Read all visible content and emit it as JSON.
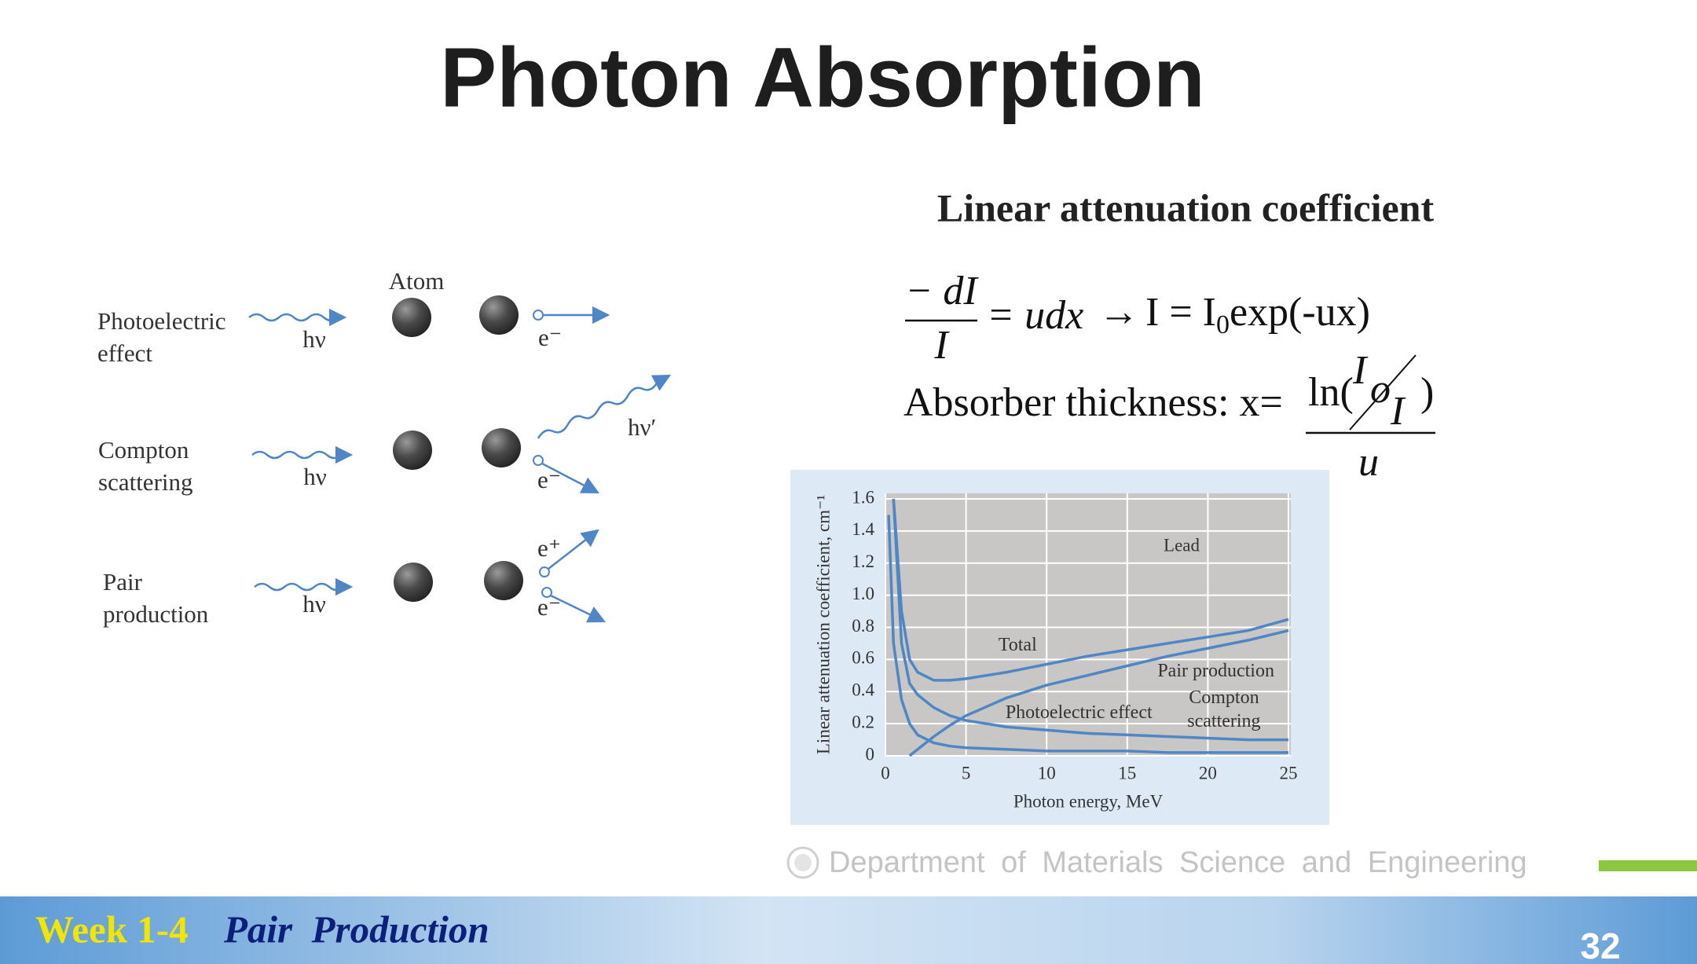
{
  "title": "Photon Absorption",
  "subtitle": "Linear attenuation coefficient",
  "equations": {
    "differential": {
      "numerator": "− dI",
      "denominator": "I",
      "rhs": "= udx",
      "arrow": "→",
      "result": "I = I",
      "result_sub": "0",
      "result_rest": "exp(-ux)"
    },
    "thickness": {
      "lead": "Absorber thickness: x=",
      "ln": "ln(",
      "i0": "I",
      "i0_sub": "o",
      "i": "I",
      "close": ")",
      "denominator": "u"
    }
  },
  "diagram": {
    "atom_label": "Atom",
    "rows": [
      {
        "label": [
          "Photoelectric",
          "effect"
        ],
        "photon": "hν",
        "products": [
          "e⁻"
        ]
      },
      {
        "label": [
          "Compton",
          "scattering"
        ],
        "photon": "hν",
        "products": [
          "hν′",
          "e⁻"
        ]
      },
      {
        "label": [
          "Pair",
          "production"
        ],
        "photon": "hν",
        "products": [
          "e⁺",
          "e⁻"
        ]
      }
    ]
  },
  "chart_data": {
    "type": "line",
    "xlabel": "Photon energy, MeV",
    "ylabel": "Linear attenuation coefficient, cm⁻¹",
    "annotation": "Lead",
    "x": [
      0.2,
      0.5,
      1,
      1.5,
      2,
      3,
      4,
      5,
      7.5,
      10,
      12.5,
      15,
      17.5,
      20,
      22.5,
      25
    ],
    "series": [
      {
        "name": "Total",
        "color": "#4f86c6",
        "values": [
          null,
          1.6,
          0.9,
          0.6,
          0.52,
          0.47,
          0.47,
          0.48,
          0.52,
          0.57,
          0.62,
          0.66,
          0.7,
          0.74,
          0.78,
          0.85
        ]
      },
      {
        "name": "Pair production",
        "color": "#4f86c6",
        "values": [
          null,
          null,
          null,
          0,
          0.04,
          0.12,
          0.19,
          0.25,
          0.36,
          0.44,
          0.5,
          0.56,
          0.62,
          0.67,
          0.72,
          0.78
        ]
      },
      {
        "name": "Photoelectric effect",
        "color": "#4f86c6",
        "values": [
          1.5,
          0.7,
          0.35,
          0.2,
          0.13,
          0.08,
          0.06,
          0.05,
          0.04,
          0.03,
          0.03,
          0.03,
          0.02,
          0.02,
          0.02,
          0.02
        ]
      },
      {
        "name": "Compton scattering",
        "color": "#4f86c6",
        "values": [
          null,
          1.6,
          0.7,
          0.45,
          0.38,
          0.3,
          0.25,
          0.22,
          0.18,
          0.16,
          0.14,
          0.13,
          0.12,
          0.11,
          0.1,
          0.1
        ]
      }
    ],
    "xlim": [
      0,
      25
    ],
    "xticks": [
      0,
      5,
      10,
      15,
      20,
      25
    ],
    "ylim": [
      0,
      1.6
    ],
    "yticks": [
      0,
      0.2,
      0.4,
      0.6,
      0.8,
      {
        "value": 1,
        "label": "1.0"
      },
      1.2,
      1.4,
      1.6
    ],
    "grid": true
  },
  "footer": {
    "department": "Department of Materials Science and Engineering",
    "week": "Week 1-4",
    "topic": "Pair  Production",
    "page": "32"
  }
}
